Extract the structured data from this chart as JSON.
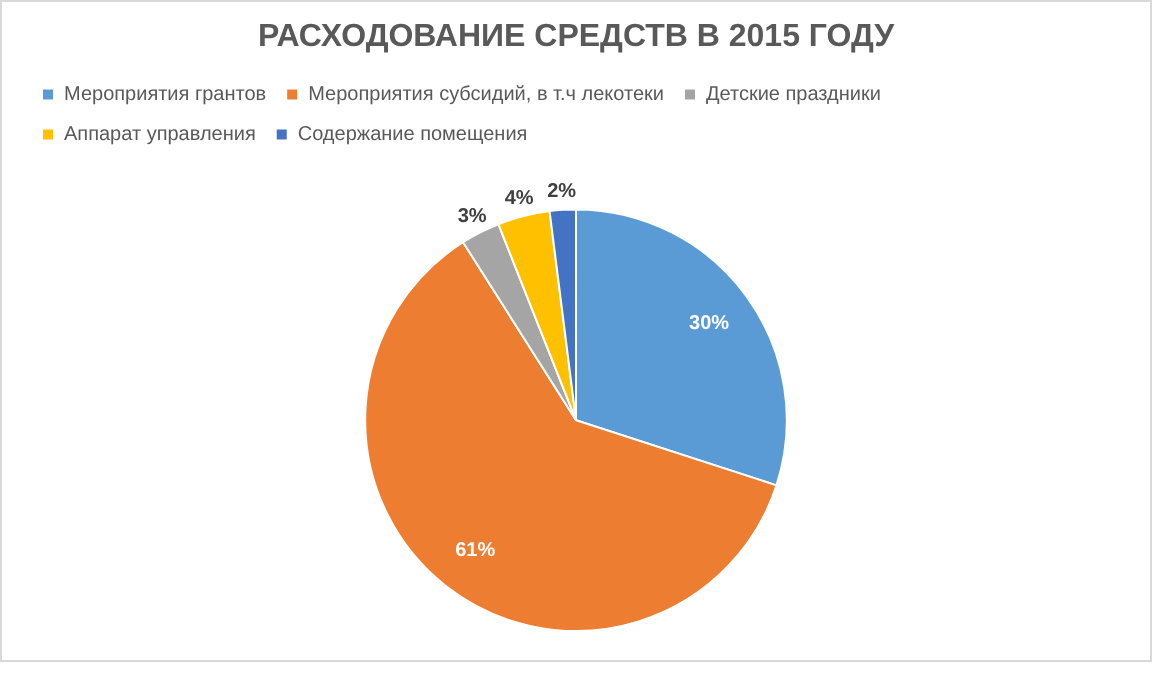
{
  "chart_data": {
    "type": "pie",
    "title": "РАСХОДОВАНИЕ СРЕДСТВ В 2015 ГОДУ",
    "categories": [
      "Мероприятия грантов",
      "Мероприятия субсидий, в т.ч лекотеки",
      "Детские праздники",
      "Аппарат управления",
      "Содержание помещения"
    ],
    "values": [
      30,
      61,
      3,
      4,
      2
    ],
    "colors": [
      "#5b9bd5",
      "#ed7d31",
      "#a5a5a5",
      "#ffc000",
      "#4472c4"
    ],
    "legend": "top",
    "value_labels": [
      "30%",
      "61%",
      "3%",
      "4%",
      "2%"
    ]
  }
}
